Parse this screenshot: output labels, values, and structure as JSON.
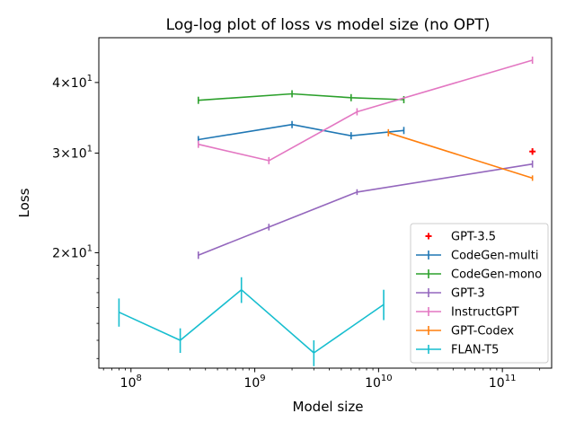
{
  "chart_data": {
    "type": "line",
    "title": "Log-log plot of loss vs model size (no OPT)",
    "xlabel": "Model size",
    "ylabel": "Loss",
    "xscale": "log",
    "yscale": "log",
    "xlim": [
      55000000,
      250000000000
    ],
    "ylim": [
      12.5,
      48
    ],
    "x_ticks": [
      {
        "value": 100000000,
        "base": "10",
        "exp": "8"
      },
      {
        "value": 1000000000,
        "base": "10",
        "exp": "9"
      },
      {
        "value": 10000000000,
        "base": "10",
        "exp": "10"
      },
      {
        "value": 100000000000,
        "base": "10",
        "exp": "11"
      }
    ],
    "y_ticks": [
      {
        "value": 20,
        "mant": "2",
        "base": "10",
        "exp": "1"
      },
      {
        "value": 30,
        "mant": "3",
        "base": "10",
        "exp": "1"
      },
      {
        "value": 40,
        "mant": "4",
        "base": "10",
        "exp": "1"
      }
    ],
    "grid": false,
    "legend_position": "lower-right",
    "series": [
      {
        "name": "GPT-3.5",
        "kind": "marker",
        "color": "#ff0000",
        "x": [
          175000000000
        ],
        "y": [
          30.2
        ],
        "err": [
          0.4
        ]
      },
      {
        "name": "CodeGen-multi",
        "color": "#1f77b4",
        "x": [
          350000000,
          2000000000,
          6000000000,
          16000000000
        ],
        "y": [
          31.7,
          33.7,
          32.2,
          32.9
        ],
        "err": [
          0.3,
          0.3,
          0.3,
          0.3
        ]
      },
      {
        "name": "CodeGen-mono",
        "color": "#2ca02c",
        "x": [
          350000000,
          2000000000,
          6000000000,
          16000000000
        ],
        "y": [
          37.2,
          38.2,
          37.6,
          37.3
        ],
        "err": [
          0.3,
          0.3,
          0.3,
          0.3
        ]
      },
      {
        "name": "GPT-3",
        "color": "#9467bd",
        "x": [
          350000000,
          1300000000,
          6700000000,
          175000000000
        ],
        "y": [
          19.8,
          22.2,
          25.6,
          28.7
        ],
        "err": [
          0.3,
          0.3,
          0.3,
          0.3
        ]
      },
      {
        "name": "InstructGPT",
        "color": "#e377c2",
        "x": [
          350000000,
          1300000000,
          6700000000,
          175000000000
        ],
        "y": [
          31.1,
          29.1,
          35.5,
          43.8
        ],
        "err": [
          0.3,
          0.3,
          0.3,
          0.3
        ]
      },
      {
        "name": "GPT-Codex",
        "color": "#ff7f0e",
        "x": [
          12000000000,
          175000000000
        ],
        "y": [
          32.6,
          27.1
        ],
        "err": [
          0.2,
          0.3
        ]
      },
      {
        "name": "FLAN-T5",
        "color": "#17becf",
        "x": [
          80000000,
          250000000,
          780000000,
          3000000000,
          11000000000
        ],
        "y": [
          15.7,
          14.0,
          17.2,
          13.3,
          16.2
        ],
        "err": [
          0.9,
          0.7,
          0.9,
          0.7,
          1.0
        ]
      }
    ]
  }
}
